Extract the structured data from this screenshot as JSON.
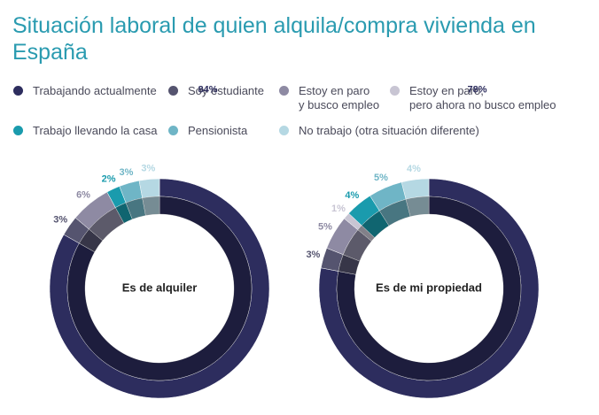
{
  "title": "Situación laboral de quien alquila/compra vivienda en España",
  "chart_data": [
    {
      "type": "pie",
      "title": "Es de alquiler",
      "categories": [
        "Trabajando actualmente",
        "Soy estudiante",
        "Estoy en paro\ny busco empleo",
        "Estoy en paro,\npero ahora no busco empleo",
        "Trabajo llevando la casa",
        "Pensionista",
        "No trabajo (otra situación diferente)"
      ],
      "colors": [
        "#2d2d5e",
        "#55546f",
        "#8e8aa3",
        "#c8c5d3",
        "#1a9bad",
        "#6fb5c6",
        "#b5d8e3"
      ],
      "values": [
        84,
        3,
        6,
        null,
        2,
        3,
        3
      ],
      "value_labels": [
        "84%",
        "3%",
        "6%",
        null,
        "2%",
        "3%",
        "3%"
      ]
    },
    {
      "type": "pie",
      "title": "Es de mi propiedad",
      "categories": [
        "Trabajando actualmente",
        "Soy estudiante",
        "Estoy en paro\ny busco empleo",
        "Estoy en paro,\npero ahora no busco empleo",
        "Trabajo llevando la casa",
        "Pensionista",
        "No trabajo (otra situación diferente)"
      ],
      "colors": [
        "#2d2d5e",
        "#55546f",
        "#8e8aa3",
        "#c8c5d3",
        "#1a9bad",
        "#6fb5c6",
        "#b5d8e3"
      ],
      "values": [
        78,
        3,
        5,
        1,
        4,
        5,
        4
      ],
      "value_labels": [
        "78%",
        "3%",
        "5%",
        "1%",
        "4%",
        "5%",
        "4%"
      ]
    }
  ]
}
